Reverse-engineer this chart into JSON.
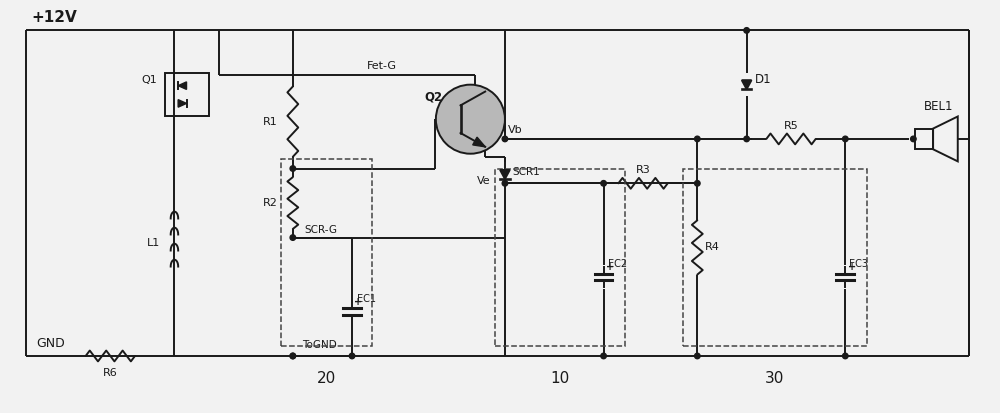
{
  "bg_color": "#f2f2f2",
  "line_color": "#1a1a1a",
  "labels": {
    "plus12v": "+12V",
    "gnd": "GND",
    "tognd": "ToGND",
    "fetg": "Fet-G",
    "vb": "Vb",
    "ve": "Ve",
    "q1": "Q1",
    "q2": "Q2",
    "r1": "R1",
    "r2": "R2",
    "r3": "R3",
    "r4": "R4",
    "r5": "R5",
    "r6": "R6",
    "l1": "L1",
    "ec1": "EC1",
    "ec2": "EC2",
    "ec3": "EC3",
    "d1": "D1",
    "scr1": "SCR1",
    "scrg": "SCR-G",
    "bel1": "BEL1",
    "n20": "20",
    "n10": "10",
    "n30": "30"
  }
}
